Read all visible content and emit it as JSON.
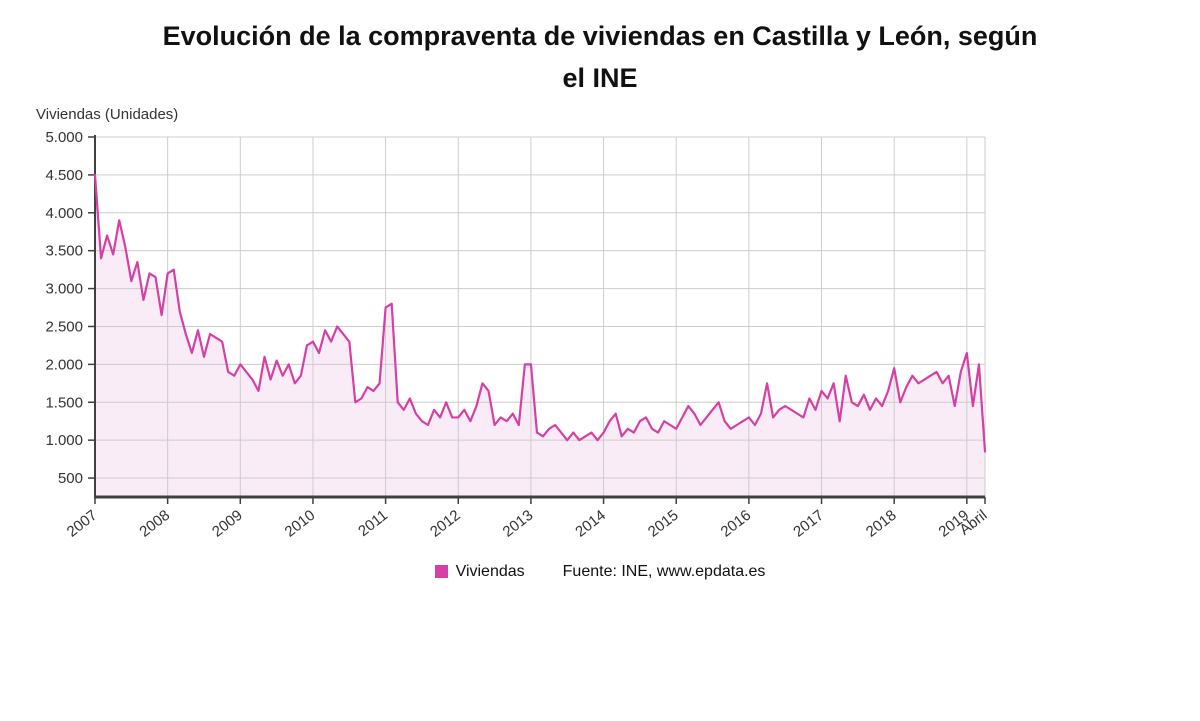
{
  "title": {
    "line1": "Evolución de la compraventa de viviendas en Castilla y León, según",
    "line2": "el INE"
  },
  "source": "Fuente: INE, www.epdata.es",
  "colors": {
    "line": "#d63fa4",
    "area": "#faecf6",
    "grid": "#cccccc",
    "axis": "#404040",
    "text": "#333333"
  },
  "chart_data": {
    "type": "area",
    "title": "Evolución de la compraventa de viviendas en Castilla y León, según el INE",
    "xlabel": "",
    "ylabel": "Viviendas (Unidades)",
    "ylim": [
      250,
      5000
    ],
    "y_ticks": [
      500,
      1000,
      1500,
      2000,
      2500,
      3000,
      3500,
      4000,
      4500,
      5000
    ],
    "x_unit": "month",
    "x_tick_labels": [
      "2007",
      "2008",
      "2009",
      "2010",
      "2011",
      "2012",
      "2013",
      "2014",
      "2015",
      "2016",
      "2017",
      "2018",
      "2019",
      "Abril"
    ],
    "legend_position": "bottom",
    "grid": true,
    "series": [
      {
        "name": "Viviendas",
        "values": [
          4500,
          3400,
          3700,
          3450,
          3900,
          3550,
          3100,
          3350,
          2850,
          3200,
          3150,
          2650,
          3200,
          3250,
          2700,
          2400,
          2150,
          2450,
          2100,
          2400,
          2350,
          2300,
          1900,
          1850,
          2000,
          1900,
          1800,
          1650,
          2100,
          1800,
          2050,
          1850,
          2000,
          1750,
          1850,
          2250,
          2300,
          2150,
          2450,
          2300,
          2500,
          2400,
          2300,
          1500,
          1550,
          1700,
          1650,
          1750,
          2750,
          2800,
          1500,
          1400,
          1550,
          1350,
          1250,
          1200,
          1400,
          1300,
          1500,
          1300,
          1300,
          1400,
          1250,
          1450,
          1750,
          1650,
          1200,
          1300,
          1250,
          1350,
          1200,
          2000,
          2000,
          1100,
          1050,
          1150,
          1200,
          1100,
          1000,
          1100,
          1000,
          1050,
          1100,
          1000,
          1100,
          1250,
          1350,
          1050,
          1150,
          1100,
          1250,
          1300,
          1150,
          1100,
          1250,
          1200,
          1150,
          1300,
          1450,
          1350,
          1200,
          1300,
          1400,
          1500,
          1250,
          1150,
          1200,
          1250,
          1300,
          1200,
          1350,
          1750,
          1300,
          1400,
          1450,
          1400,
          1350,
          1300,
          1550,
          1400,
          1650,
          1550,
          1750,
          1250,
          1850,
          1500,
          1450,
          1600,
          1400,
          1550,
          1450,
          1650,
          1950,
          1500,
          1700,
          1850,
          1750,
          1800,
          1850,
          1900,
          1750,
          1850,
          1450,
          1900,
          2150,
          1450,
          2000,
          850
        ]
      }
    ]
  }
}
